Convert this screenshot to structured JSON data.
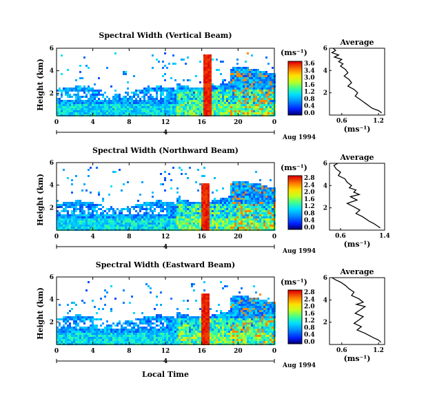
{
  "chart_data": [
    {
      "type": "heatmap",
      "title": "Spectral Width (Vertical Beam)",
      "ylabel": "Height (km)",
      "xlabel": "",
      "xticks": [
        "0",
        "4",
        "8",
        "12",
        "16",
        "20",
        "0"
      ],
      "yticks": [
        "6",
        "4",
        "2"
      ],
      "xlim": [
        0,
        24
      ],
      "ylim": [
        0,
        6
      ],
      "date_label": "Aug 1994",
      "day_marker": "4",
      "colorbar": {
        "unit": "(ms⁻¹)",
        "ticks": [
          "3.6",
          "3.4",
          "3.0",
          "1.6",
          "1.2",
          "0.8",
          "0.4",
          "0.0"
        ]
      },
      "red_spike_hour": 16.6,
      "red_spike_top_km": 5.5,
      "average": {
        "title": "Average",
        "xlabel": "(ms⁻¹)",
        "xticks": [
          "0.6",
          "1.2"
        ],
        "yticks": [
          "6",
          "4",
          "2"
        ],
        "xlim": [
          0.4,
          1.3
        ],
        "ylim": [
          0,
          6
        ],
        "x": [
          0.46,
          0.5,
          0.44,
          0.55,
          0.48,
          0.6,
          0.55,
          0.62,
          0.58,
          0.66,
          0.7,
          0.64,
          0.72,
          0.76,
          0.7,
          0.8,
          0.86,
          0.82,
          0.9,
          0.95,
          1.0,
          1.05,
          1.1,
          1.2,
          1.25
        ],
        "y": [
          6.0,
          5.8,
          5.6,
          5.4,
          5.2,
          5.0,
          4.8,
          4.6,
          4.4,
          4.1,
          3.8,
          3.5,
          3.2,
          2.9,
          2.6,
          2.3,
          2.0,
          1.7,
          1.4,
          1.2,
          1.0,
          0.8,
          0.6,
          0.4,
          0.2
        ]
      }
    },
    {
      "type": "heatmap",
      "title": "Spectral Width (Northward Beam)",
      "ylabel": "Height (km)",
      "xlabel": "",
      "xticks": [
        "0",
        "4",
        "8",
        "12",
        "16",
        "20",
        "0"
      ],
      "yticks": [
        "6",
        "4",
        "2"
      ],
      "xlim": [
        0,
        24
      ],
      "ylim": [
        0,
        6
      ],
      "date_label": "Aug 1994",
      "day_marker": "4",
      "colorbar": {
        "unit": "(ms⁻¹)",
        "ticks": [
          "2.8",
          "2.4",
          "2.0",
          "1.6",
          "1.2",
          "0.8",
          "0.4",
          "0.0"
        ]
      },
      "red_spike_hour": 16.3,
      "red_spike_top_km": 4.2,
      "average": {
        "title": "Average",
        "xlabel": "(ms⁻¹)",
        "xticks": [
          "0.6",
          "1.4"
        ],
        "yticks": [
          "6",
          "4",
          "2"
        ],
        "xlim": [
          0.4,
          1.4
        ],
        "ylim": [
          0,
          6
        ],
        "x": [
          0.55,
          0.48,
          0.52,
          0.6,
          0.56,
          0.68,
          0.72,
          0.8,
          0.76,
          0.88,
          0.84,
          0.94,
          0.78,
          0.9,
          0.72,
          0.84,
          0.95,
          0.88,
          1.0,
          1.06,
          1.12,
          1.2,
          1.26,
          1.32
        ],
        "y": [
          6.0,
          5.8,
          5.5,
          5.2,
          4.9,
          4.6,
          4.3,
          4.0,
          3.8,
          3.6,
          3.4,
          3.2,
          3.0,
          2.7,
          2.4,
          2.1,
          1.8,
          1.5,
          1.2,
          1.0,
          0.8,
          0.6,
          0.4,
          0.2
        ]
      }
    },
    {
      "type": "heatmap",
      "title": "Spectral Width (Eastward Beam)",
      "ylabel": "Height (km)",
      "xlabel": "Local Time",
      "xticks": [
        "0",
        "4",
        "8",
        "12",
        "16",
        "20",
        "0"
      ],
      "yticks": [
        "6",
        "4",
        "2"
      ],
      "xlim": [
        0,
        24
      ],
      "ylim": [
        0,
        6
      ],
      "date_label": "Aug 1994",
      "day_marker": "4",
      "colorbar": {
        "unit": "(ms⁻¹)",
        "ticks": [
          "2.8",
          "2.4",
          "2.0",
          "1.6",
          "1.2",
          "0.8",
          "0.4",
          "0.0"
        ]
      },
      "red_spike_hour": 16.3,
      "red_spike_top_km": 4.6,
      "average": {
        "title": "Average",
        "xlabel": "(ms⁻¹)",
        "xticks": [
          "0.6",
          "1.2"
        ],
        "yticks": [
          "6",
          "4",
          "2"
        ],
        "xlim": [
          0.4,
          1.3
        ],
        "ylim": [
          0,
          6
        ],
        "x": [
          0.44,
          0.5,
          0.58,
          0.66,
          0.72,
          0.8,
          0.76,
          0.88,
          0.95,
          0.84,
          0.98,
          0.9,
          0.82,
          0.95,
          0.88,
          0.8,
          0.92,
          0.85,
          0.98,
          1.05,
          1.12,
          1.2,
          1.24
        ],
        "y": [
          6.0,
          5.8,
          5.6,
          5.3,
          5.0,
          4.7,
          4.4,
          4.1,
          3.8,
          3.6,
          3.4,
          3.1,
          2.8,
          2.5,
          2.2,
          1.9,
          1.6,
          1.3,
          1.0,
          0.8,
          0.6,
          0.4,
          0.2
        ]
      }
    }
  ]
}
